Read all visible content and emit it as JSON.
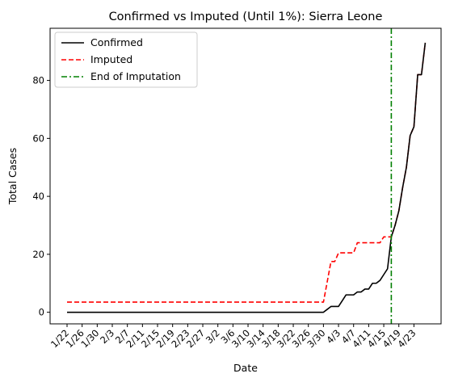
{
  "chart_data": {
    "type": "line",
    "title": "Confirmed vs Imputed (Until 1%): Sierra Leone",
    "xlabel": "Date",
    "ylabel": "Total Cases",
    "x_start": "1/22",
    "x_ticks": [
      "1/22",
      "1/26",
      "1/30",
      "2/3",
      "2/7",
      "2/11",
      "2/15",
      "2/19",
      "2/23",
      "2/27",
      "3/2",
      "3/6",
      "3/10",
      "3/14",
      "3/18",
      "3/22",
      "3/26",
      "3/30",
      "4/3",
      "4/7",
      "4/11",
      "4/15",
      "4/19",
      "4/23"
    ],
    "y_ticks": [
      0,
      20,
      40,
      60,
      80
    ],
    "ylim": [
      -4,
      98
    ],
    "grid": false,
    "legend_position": "top-left",
    "series": [
      {
        "name": "Confirmed",
        "color": "#000000",
        "style": "solid",
        "points": [
          [
            "1/22",
            0
          ],
          [
            "3/30",
            0
          ],
          [
            "3/31",
            1
          ],
          [
            "4/1",
            2
          ],
          [
            "4/3",
            2
          ],
          [
            "4/4",
            4
          ],
          [
            "4/5",
            6
          ],
          [
            "4/7",
            6
          ],
          [
            "4/8",
            7
          ],
          [
            "4/9",
            7
          ],
          [
            "4/10",
            8
          ],
          [
            "4/11",
            8
          ],
          [
            "4/12",
            10
          ],
          [
            "4/13",
            10
          ],
          [
            "4/14",
            11
          ],
          [
            "4/15",
            13
          ],
          [
            "4/16",
            15
          ],
          [
            "4/17",
            26
          ],
          [
            "4/18",
            30
          ],
          [
            "4/19",
            35
          ],
          [
            "4/20",
            43
          ],
          [
            "4/21",
            50
          ],
          [
            "4/22",
            61
          ],
          [
            "4/23",
            64
          ],
          [
            "4/24",
            82
          ],
          [
            "4/25",
            82
          ],
          [
            "4/26",
            93
          ]
        ]
      },
      {
        "name": "Imputed",
        "color": "#ff0000",
        "style": "dashed",
        "points": [
          [
            "1/22",
            3.5
          ],
          [
            "3/30",
            3.5
          ],
          [
            "3/31",
            10.5
          ],
          [
            "4/1",
            17.5
          ],
          [
            "4/2",
            17.5
          ],
          [
            "4/3",
            20.5
          ],
          [
            "4/7",
            20.5
          ],
          [
            "4/8",
            24
          ],
          [
            "4/14",
            24
          ],
          [
            "4/15",
            26
          ],
          [
            "4/17",
            26
          ],
          [
            "4/18",
            30
          ],
          [
            "4/19",
            35
          ],
          [
            "4/20",
            43
          ],
          [
            "4/21",
            50
          ],
          [
            "4/22",
            61
          ],
          [
            "4/23",
            64
          ],
          [
            "4/24",
            82
          ],
          [
            "4/25",
            82
          ],
          [
            "4/26",
            93
          ]
        ]
      }
    ],
    "vline": {
      "name": "End of Imputation",
      "x": "4/17",
      "color": "#008000",
      "style": "dashdot"
    }
  }
}
